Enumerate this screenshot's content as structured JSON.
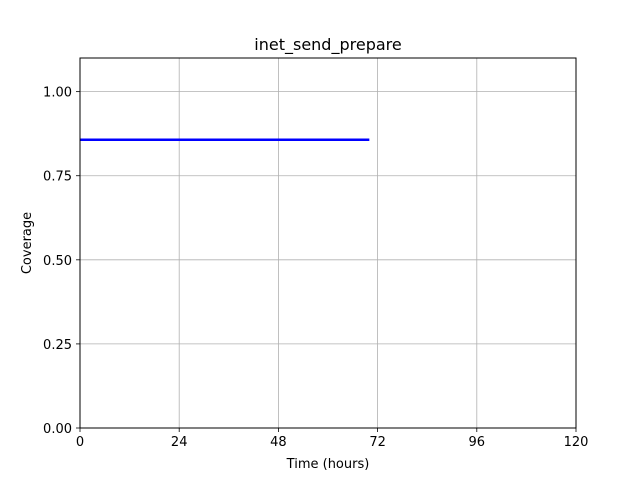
{
  "chart_data": {
    "type": "line",
    "title": "inet_send_prepare",
    "xlabel": "Time (hours)",
    "ylabel": "Coverage",
    "xlim": [
      0,
      120
    ],
    "ylim": [
      0,
      1.1
    ],
    "x_ticks": [
      0,
      24,
      48,
      72,
      96,
      120
    ],
    "y_ticks": [
      0.0,
      0.25,
      0.5,
      0.75,
      1.0
    ],
    "x_tick_labels": [
      "0",
      "24",
      "48",
      "72",
      "96",
      "120"
    ],
    "y_tick_labels": [
      "0.00",
      "0.25",
      "0.50",
      "0.75",
      "1.00"
    ],
    "grid": true,
    "series": [
      {
        "color": "#0000ff",
        "x": [
          0,
          70
        ],
        "y": [
          0.857,
          0.857
        ]
      }
    ]
  }
}
